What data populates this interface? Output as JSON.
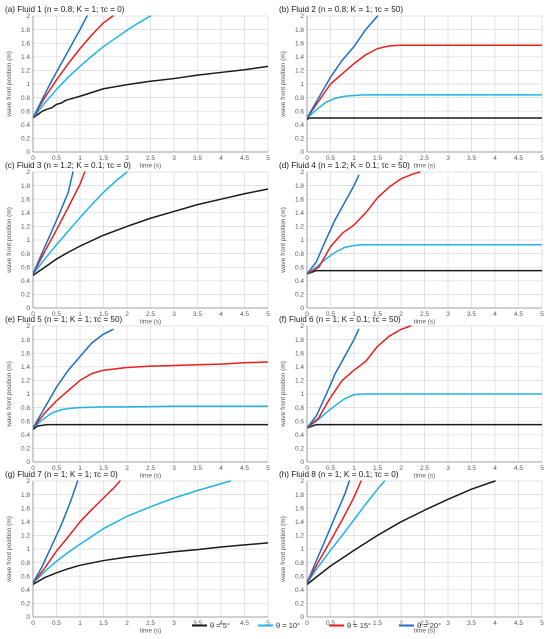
{
  "figure": {
    "legend": [
      {
        "label": "θ = 5°",
        "color": "#1a1a1a"
      },
      {
        "label": "θ = 10°",
        "color": "#1eb4e6"
      },
      {
        "label": "θ = 15°",
        "color": "#e62020"
      },
      {
        "label": "θ = 20°",
        "color": "#1f6fc0"
      }
    ]
  },
  "chart_data": [
    {
      "type": "line",
      "title": "(a) Fluid 1 (n = 0.8; K = 1; τc = 0)",
      "xlabel": "time (s)",
      "ylabel": "wave front position (m)",
      "xlim": [
        0,
        5
      ],
      "ylim": [
        0,
        2
      ],
      "xticks": [
        "0",
        "0.5",
        "1",
        "1.5",
        "2",
        "2.5",
        "3",
        "3.5",
        "4",
        "4.5",
        "5"
      ],
      "yticks": [
        "0",
        "0.2",
        "0.4",
        "0.6",
        "0.8",
        "1",
        "1.2",
        "1.4",
        "1.6",
        "1.8",
        "2"
      ],
      "grid": true,
      "series": [
        {
          "name": "θ = 5°",
          "color": "#1a1a1a",
          "x": [
            0,
            0.1,
            0.2,
            0.3,
            0.4,
            0.5,
            0.6,
            0.7,
            0.8,
            1.0,
            1.5,
            2,
            2.5,
            3,
            3.5,
            4,
            4.5,
            5
          ],
          "y": [
            0.5,
            0.55,
            0.6,
            0.63,
            0.65,
            0.7,
            0.72,
            0.76,
            0.78,
            0.82,
            0.93,
            0.99,
            1.04,
            1.08,
            1.13,
            1.17,
            1.21,
            1.26
          ]
        },
        {
          "name": "θ = 10°",
          "color": "#1eb4e6",
          "x": [
            0,
            0.25,
            0.5,
            0.75,
            1.0,
            1.25,
            1.5,
            1.75,
            2.0,
            2.25,
            2.5
          ],
          "y": [
            0.5,
            0.72,
            0.92,
            1.1,
            1.26,
            1.41,
            1.55,
            1.67,
            1.79,
            1.9,
            2.0
          ]
        },
        {
          "name": "θ = 15°",
          "color": "#e62020",
          "x": [
            0,
            0.25,
            0.5,
            0.75,
            1.0,
            1.25,
            1.5,
            1.7
          ],
          "y": [
            0.5,
            0.8,
            1.06,
            1.3,
            1.52,
            1.72,
            1.9,
            2.0
          ]
        },
        {
          "name": "θ = 20°",
          "color": "#1f6fc0",
          "x": [
            0,
            0.2,
            0.4,
            0.6,
            0.8,
            1.0,
            1.15
          ],
          "y": [
            0.5,
            0.78,
            1.05,
            1.3,
            1.55,
            1.8,
            2.0
          ]
        }
      ]
    },
    {
      "type": "line",
      "title": "(b) Fluid 2 (n = 0.8; K = 1; τc = 50)",
      "xlabel": "time (s)",
      "ylabel": "wave front position (m)",
      "xlim": [
        0,
        5
      ],
      "ylim": [
        0,
        2
      ],
      "xticks": [
        "0",
        "0.5",
        "1",
        "1.5",
        "2",
        "2.5",
        "3",
        "3.5",
        "4",
        "4.5",
        "5"
      ],
      "yticks": [
        "0",
        "0.2",
        "0.4",
        "0.6",
        "0.8",
        "1",
        "1.2",
        "1.4",
        "1.6",
        "1.8",
        "2"
      ],
      "grid": true,
      "series": [
        {
          "name": "θ = 5°",
          "color": "#1a1a1a",
          "x": [
            0,
            0.05,
            5
          ],
          "y": [
            0.48,
            0.5,
            0.5
          ]
        },
        {
          "name": "θ = 10°",
          "color": "#1eb4e6",
          "x": [
            0,
            0.2,
            0.4,
            0.6,
            0.8,
            1.0,
            1.2,
            1.5,
            5
          ],
          "y": [
            0.5,
            0.62,
            0.73,
            0.79,
            0.82,
            0.83,
            0.84,
            0.84,
            0.84
          ]
        },
        {
          "name": "θ = 15°",
          "color": "#e62020",
          "x": [
            0,
            0.25,
            0.5,
            0.75,
            1.0,
            1.25,
            1.5,
            1.75,
            2.0,
            2.5,
            5
          ],
          "y": [
            0.5,
            0.75,
            1.0,
            1.15,
            1.3,
            1.43,
            1.52,
            1.56,
            1.57,
            1.57,
            1.57
          ]
        },
        {
          "name": "θ = 20°",
          "color": "#1f6fc0",
          "x": [
            0,
            0.25,
            0.5,
            0.75,
            1.0,
            1.25,
            1.5
          ],
          "y": [
            0.5,
            0.8,
            1.1,
            1.35,
            1.55,
            1.8,
            2.0
          ]
        }
      ]
    },
    {
      "type": "line",
      "title": "(c) Fluid 3 (n = 1.2; K = 0.1; τc = 0)",
      "xlabel": "time (s)",
      "ylabel": "wave front position (m)",
      "xlim": [
        0,
        5
      ],
      "ylim": [
        0,
        2
      ],
      "xticks": [
        "0",
        "0.5",
        "1",
        "1.5",
        "2",
        "2.5",
        "3",
        "3.5",
        "4",
        "4.5",
        "5"
      ],
      "yticks": [
        "0",
        "0.2",
        "0.4",
        "0.6",
        "0.8",
        "1",
        "1.2",
        "1.4",
        "1.6",
        "1.8",
        "2"
      ],
      "grid": true,
      "series": [
        {
          "name": "θ = 5°",
          "color": "#1a1a1a",
          "x": [
            0,
            0.25,
            0.5,
            0.75,
            1.0,
            1.5,
            2.0,
            2.5,
            3.0,
            3.5,
            4.0,
            4.5,
            5.0
          ],
          "y": [
            0.48,
            0.6,
            0.72,
            0.82,
            0.91,
            1.07,
            1.2,
            1.32,
            1.42,
            1.52,
            1.6,
            1.68,
            1.75
          ]
        },
        {
          "name": "θ = 10°",
          "color": "#1eb4e6",
          "x": [
            0,
            0.25,
            0.5,
            0.75,
            1.0,
            1.25,
            1.5,
            1.75,
            2.0
          ],
          "y": [
            0.5,
            0.72,
            0.93,
            1.13,
            1.33,
            1.52,
            1.7,
            1.86,
            2.0
          ]
        },
        {
          "name": "θ = 15°",
          "color": "#e62020",
          "x": [
            0,
            0.25,
            0.5,
            0.75,
            1.0,
            1.1
          ],
          "y": [
            0.5,
            0.83,
            1.15,
            1.48,
            1.82,
            2.0
          ]
        },
        {
          "name": "θ = 20°",
          "color": "#1f6fc0",
          "x": [
            0,
            0.2,
            0.4,
            0.6,
            0.75,
            0.85
          ],
          "y": [
            0.5,
            0.82,
            1.13,
            1.45,
            1.7,
            2.0
          ]
        }
      ]
    },
    {
      "type": "line",
      "title": "(d) Fluid 4 (n = 1.2; K = 0.1; τc = 50)",
      "xlabel": "time (s)",
      "ylabel": "wave front position (m)",
      "xlim": [
        0,
        5
      ],
      "ylim": [
        0,
        2
      ],
      "xticks": [
        "0",
        "0.5",
        "1",
        "1.5",
        "2",
        "2.5",
        "3",
        "3.5",
        "4",
        "4.5",
        "5"
      ],
      "yticks": [
        "0",
        "0.2",
        "0.4",
        "0.6",
        "0.8",
        "1",
        "1.2",
        "1.4",
        "1.6",
        "1.8",
        "2"
      ],
      "grid": true,
      "series": [
        {
          "name": "θ = 5°",
          "color": "#1a1a1a",
          "x": [
            0,
            0.2,
            0.4,
            5
          ],
          "y": [
            0.5,
            0.55,
            0.55,
            0.55
          ]
        },
        {
          "name": "θ = 10°",
          "color": "#1eb4e6",
          "x": [
            0,
            0.2,
            0.4,
            0.6,
            0.8,
            1.0,
            1.2,
            1.5,
            5
          ],
          "y": [
            0.5,
            0.6,
            0.72,
            0.82,
            0.89,
            0.92,
            0.93,
            0.93,
            0.93
          ]
        },
        {
          "name": "θ = 15°",
          "color": "#e62020",
          "x": [
            0,
            0.25,
            0.5,
            0.75,
            1.0,
            1.25,
            1.5,
            1.75,
            2.0,
            2.25,
            2.4
          ],
          "y": [
            0.5,
            0.6,
            0.9,
            1.1,
            1.22,
            1.4,
            1.62,
            1.78,
            1.9,
            1.97,
            2.0
          ]
        },
        {
          "name": "θ = 20°",
          "color": "#1f6fc0",
          "x": [
            0,
            0.2,
            0.4,
            0.6,
            0.8,
            1.0,
            1.1
          ],
          "y": [
            0.5,
            0.68,
            1.0,
            1.3,
            1.55,
            1.8,
            1.95
          ]
        }
      ]
    },
    {
      "type": "line",
      "title": "(e) Fluid 5 (n = 1; K = 1; τc = 50)",
      "xlabel": "time (s)",
      "ylabel": "wave front position (m)",
      "xlim": [
        0,
        5
      ],
      "ylim": [
        0,
        2
      ],
      "xticks": [
        "0",
        "0.5",
        "1",
        "1.5",
        "2",
        "2.5",
        "3",
        "3.5",
        "4",
        "4.5",
        "5"
      ],
      "yticks": [
        "0",
        "0.2",
        "0.4",
        "0.6",
        "0.8",
        "1",
        "1.2",
        "1.4",
        "1.6",
        "1.8",
        "2"
      ],
      "grid": true,
      "series": [
        {
          "name": "θ = 5°",
          "color": "#1a1a1a",
          "x": [
            0,
            0.1,
            0.3,
            5
          ],
          "y": [
            0.48,
            0.53,
            0.55,
            0.55
          ]
        },
        {
          "name": "θ = 10°",
          "color": "#1eb4e6",
          "x": [
            0,
            0.2,
            0.4,
            0.6,
            0.8,
            1.0,
            1.5,
            2.0,
            3.0,
            4.0,
            5.0
          ],
          "y": [
            0.5,
            0.62,
            0.72,
            0.77,
            0.79,
            0.8,
            0.81,
            0.81,
            0.82,
            0.82,
            0.82
          ]
        },
        {
          "name": "θ = 15°",
          "color": "#e62020",
          "x": [
            0,
            0.25,
            0.5,
            0.75,
            1.0,
            1.25,
            1.5,
            2.0,
            2.5,
            3.0,
            3.5,
            4.0,
            4.5,
            5.0
          ],
          "y": [
            0.5,
            0.72,
            0.9,
            1.05,
            1.2,
            1.3,
            1.35,
            1.39,
            1.41,
            1.42,
            1.43,
            1.44,
            1.46,
            1.47
          ]
        },
        {
          "name": "θ = 20°",
          "color": "#1f6fc0",
          "x": [
            0,
            0.25,
            0.5,
            0.75,
            1.0,
            1.25,
            1.5,
            1.7
          ],
          "y": [
            0.5,
            0.8,
            1.1,
            1.35,
            1.55,
            1.75,
            1.88,
            1.95
          ]
        }
      ]
    },
    {
      "type": "line",
      "title": "(f) Fluid 6 (n = 1; K = 0.1; τc = 50)",
      "xlabel": "time (s)",
      "ylabel": "wave front position (m)",
      "xlim": [
        0,
        5
      ],
      "ylim": [
        0,
        2
      ],
      "xticks": [
        "0",
        "0.5",
        "1",
        "1.5",
        "2",
        "2.5",
        "3",
        "3.5",
        "4",
        "4.5",
        "5"
      ],
      "yticks": [
        "0",
        "0.2",
        "0.4",
        "0.6",
        "0.8",
        "1",
        "1.2",
        "1.4",
        "1.6",
        "1.8",
        "2"
      ],
      "grid": true,
      "series": [
        {
          "name": "θ = 5°",
          "color": "#1a1a1a",
          "x": [
            0,
            0.2,
            0.3,
            5
          ],
          "y": [
            0.5,
            0.55,
            0.55,
            0.55
          ]
        },
        {
          "name": "θ = 10°",
          "color": "#1eb4e6",
          "x": [
            0,
            0.2,
            0.4,
            0.6,
            0.8,
            1.0,
            1.2,
            5
          ],
          "y": [
            0.5,
            0.6,
            0.72,
            0.83,
            0.93,
            0.99,
            1.0,
            1.0
          ]
        },
        {
          "name": "θ = 15°",
          "color": "#e62020",
          "x": [
            0,
            0.25,
            0.5,
            0.75,
            1.0,
            1.25,
            1.5,
            1.75,
            2.0,
            2.2
          ],
          "y": [
            0.5,
            0.65,
            0.95,
            1.2,
            1.35,
            1.48,
            1.7,
            1.85,
            1.95,
            2.0
          ]
        },
        {
          "name": "θ = 20°",
          "color": "#1f6fc0",
          "x": [
            0,
            0.2,
            0.4,
            0.6,
            0.8,
            1.0,
            1.1
          ],
          "y": [
            0.5,
            0.68,
            0.98,
            1.3,
            1.55,
            1.8,
            1.95
          ]
        }
      ]
    },
    {
      "type": "line",
      "title": "(g) Fluid 7 (n = 1; K = 1; τc = 0)",
      "xlabel": "time (s)",
      "ylabel": "wave front position (m)",
      "xlim": [
        0,
        5
      ],
      "ylim": [
        0,
        2
      ],
      "xticks": [
        "0",
        "0.5",
        "1",
        "1.5",
        "2",
        "2.5",
        "3",
        "3.5",
        "4",
        "4.5",
        "5"
      ],
      "yticks": [
        "0",
        "0.2",
        "0.4",
        "0.6",
        "0.8",
        "1",
        "1.2",
        "1.4",
        "1.6",
        "1.8",
        "2"
      ],
      "grid": true,
      "series": [
        {
          "name": "θ = 5°",
          "color": "#1a1a1a",
          "x": [
            0,
            0.25,
            0.5,
            0.75,
            1.0,
            1.5,
            2.0,
            2.5,
            3.0,
            3.5,
            4.0,
            4.5,
            5.0
          ],
          "y": [
            0.48,
            0.58,
            0.65,
            0.71,
            0.76,
            0.83,
            0.88,
            0.92,
            0.96,
            0.99,
            1.03,
            1.06,
            1.09
          ]
        },
        {
          "name": "θ = 10°",
          "color": "#1eb4e6",
          "x": [
            0,
            0.25,
            0.5,
            0.75,
            1.0,
            1.5,
            2.0,
            2.5,
            3.0,
            3.5,
            4.0,
            4.2
          ],
          "y": [
            0.5,
            0.67,
            0.82,
            0.95,
            1.07,
            1.3,
            1.48,
            1.62,
            1.75,
            1.86,
            1.96,
            2.0
          ]
        },
        {
          "name": "θ = 15°",
          "color": "#e62020",
          "x": [
            0,
            0.25,
            0.5,
            0.75,
            1.0,
            1.25,
            1.5,
            1.75,
            1.85
          ],
          "y": [
            0.5,
            0.72,
            0.97,
            1.18,
            1.4,
            1.58,
            1.75,
            1.92,
            2.0
          ]
        },
        {
          "name": "θ = 20°",
          "color": "#1f6fc0",
          "x": [
            0,
            0.2,
            0.4,
            0.6,
            0.8,
            0.95
          ],
          "y": [
            0.5,
            0.75,
            1.05,
            1.35,
            1.7,
            2.0
          ]
        }
      ]
    },
    {
      "type": "line",
      "title": "(h) Fluid 8 (n = 1; K = 0.1; τc = 0)",
      "xlabel": "time (s)",
      "ylabel": "wave front position (m)",
      "xlim": [
        0,
        5
      ],
      "ylim": [
        0,
        2
      ],
      "xticks": [
        "0",
        "0.5",
        "1",
        "1.5",
        "2",
        "2.5",
        "3",
        "3.5",
        "4",
        "4.5",
        "5"
      ],
      "yticks": [
        "0",
        "0.2",
        "0.4",
        "0.6",
        "0.8",
        "1",
        "1.2",
        "1.4",
        "1.6",
        "1.8",
        "2"
      ],
      "grid": true,
      "series": [
        {
          "name": "θ = 5°",
          "color": "#1a1a1a",
          "x": [
            0,
            0.5,
            1.0,
            1.5,
            2.0,
            2.5,
            3.0,
            3.5,
            4.0
          ],
          "y": [
            0.48,
            0.75,
            0.98,
            1.2,
            1.4,
            1.57,
            1.73,
            1.88,
            2.0
          ]
        },
        {
          "name": "θ = 10°",
          "color": "#1eb4e6",
          "x": [
            0,
            0.25,
            0.5,
            0.75,
            1.0,
            1.25,
            1.5,
            1.65
          ],
          "y": [
            0.5,
            0.75,
            0.98,
            1.2,
            1.43,
            1.66,
            1.88,
            2.0
          ]
        },
        {
          "name": "θ = 15°",
          "color": "#e62020",
          "x": [
            0,
            0.25,
            0.5,
            0.75,
            1.0,
            1.15
          ],
          "y": [
            0.5,
            0.82,
            1.12,
            1.43,
            1.76,
            2.0
          ]
        },
        {
          "name": "θ = 20°",
          "color": "#1f6fc0",
          "x": [
            0,
            0.2,
            0.4,
            0.6,
            0.8,
            0.9
          ],
          "y": [
            0.5,
            0.83,
            1.15,
            1.48,
            1.8,
            2.0
          ]
        }
      ]
    }
  ]
}
